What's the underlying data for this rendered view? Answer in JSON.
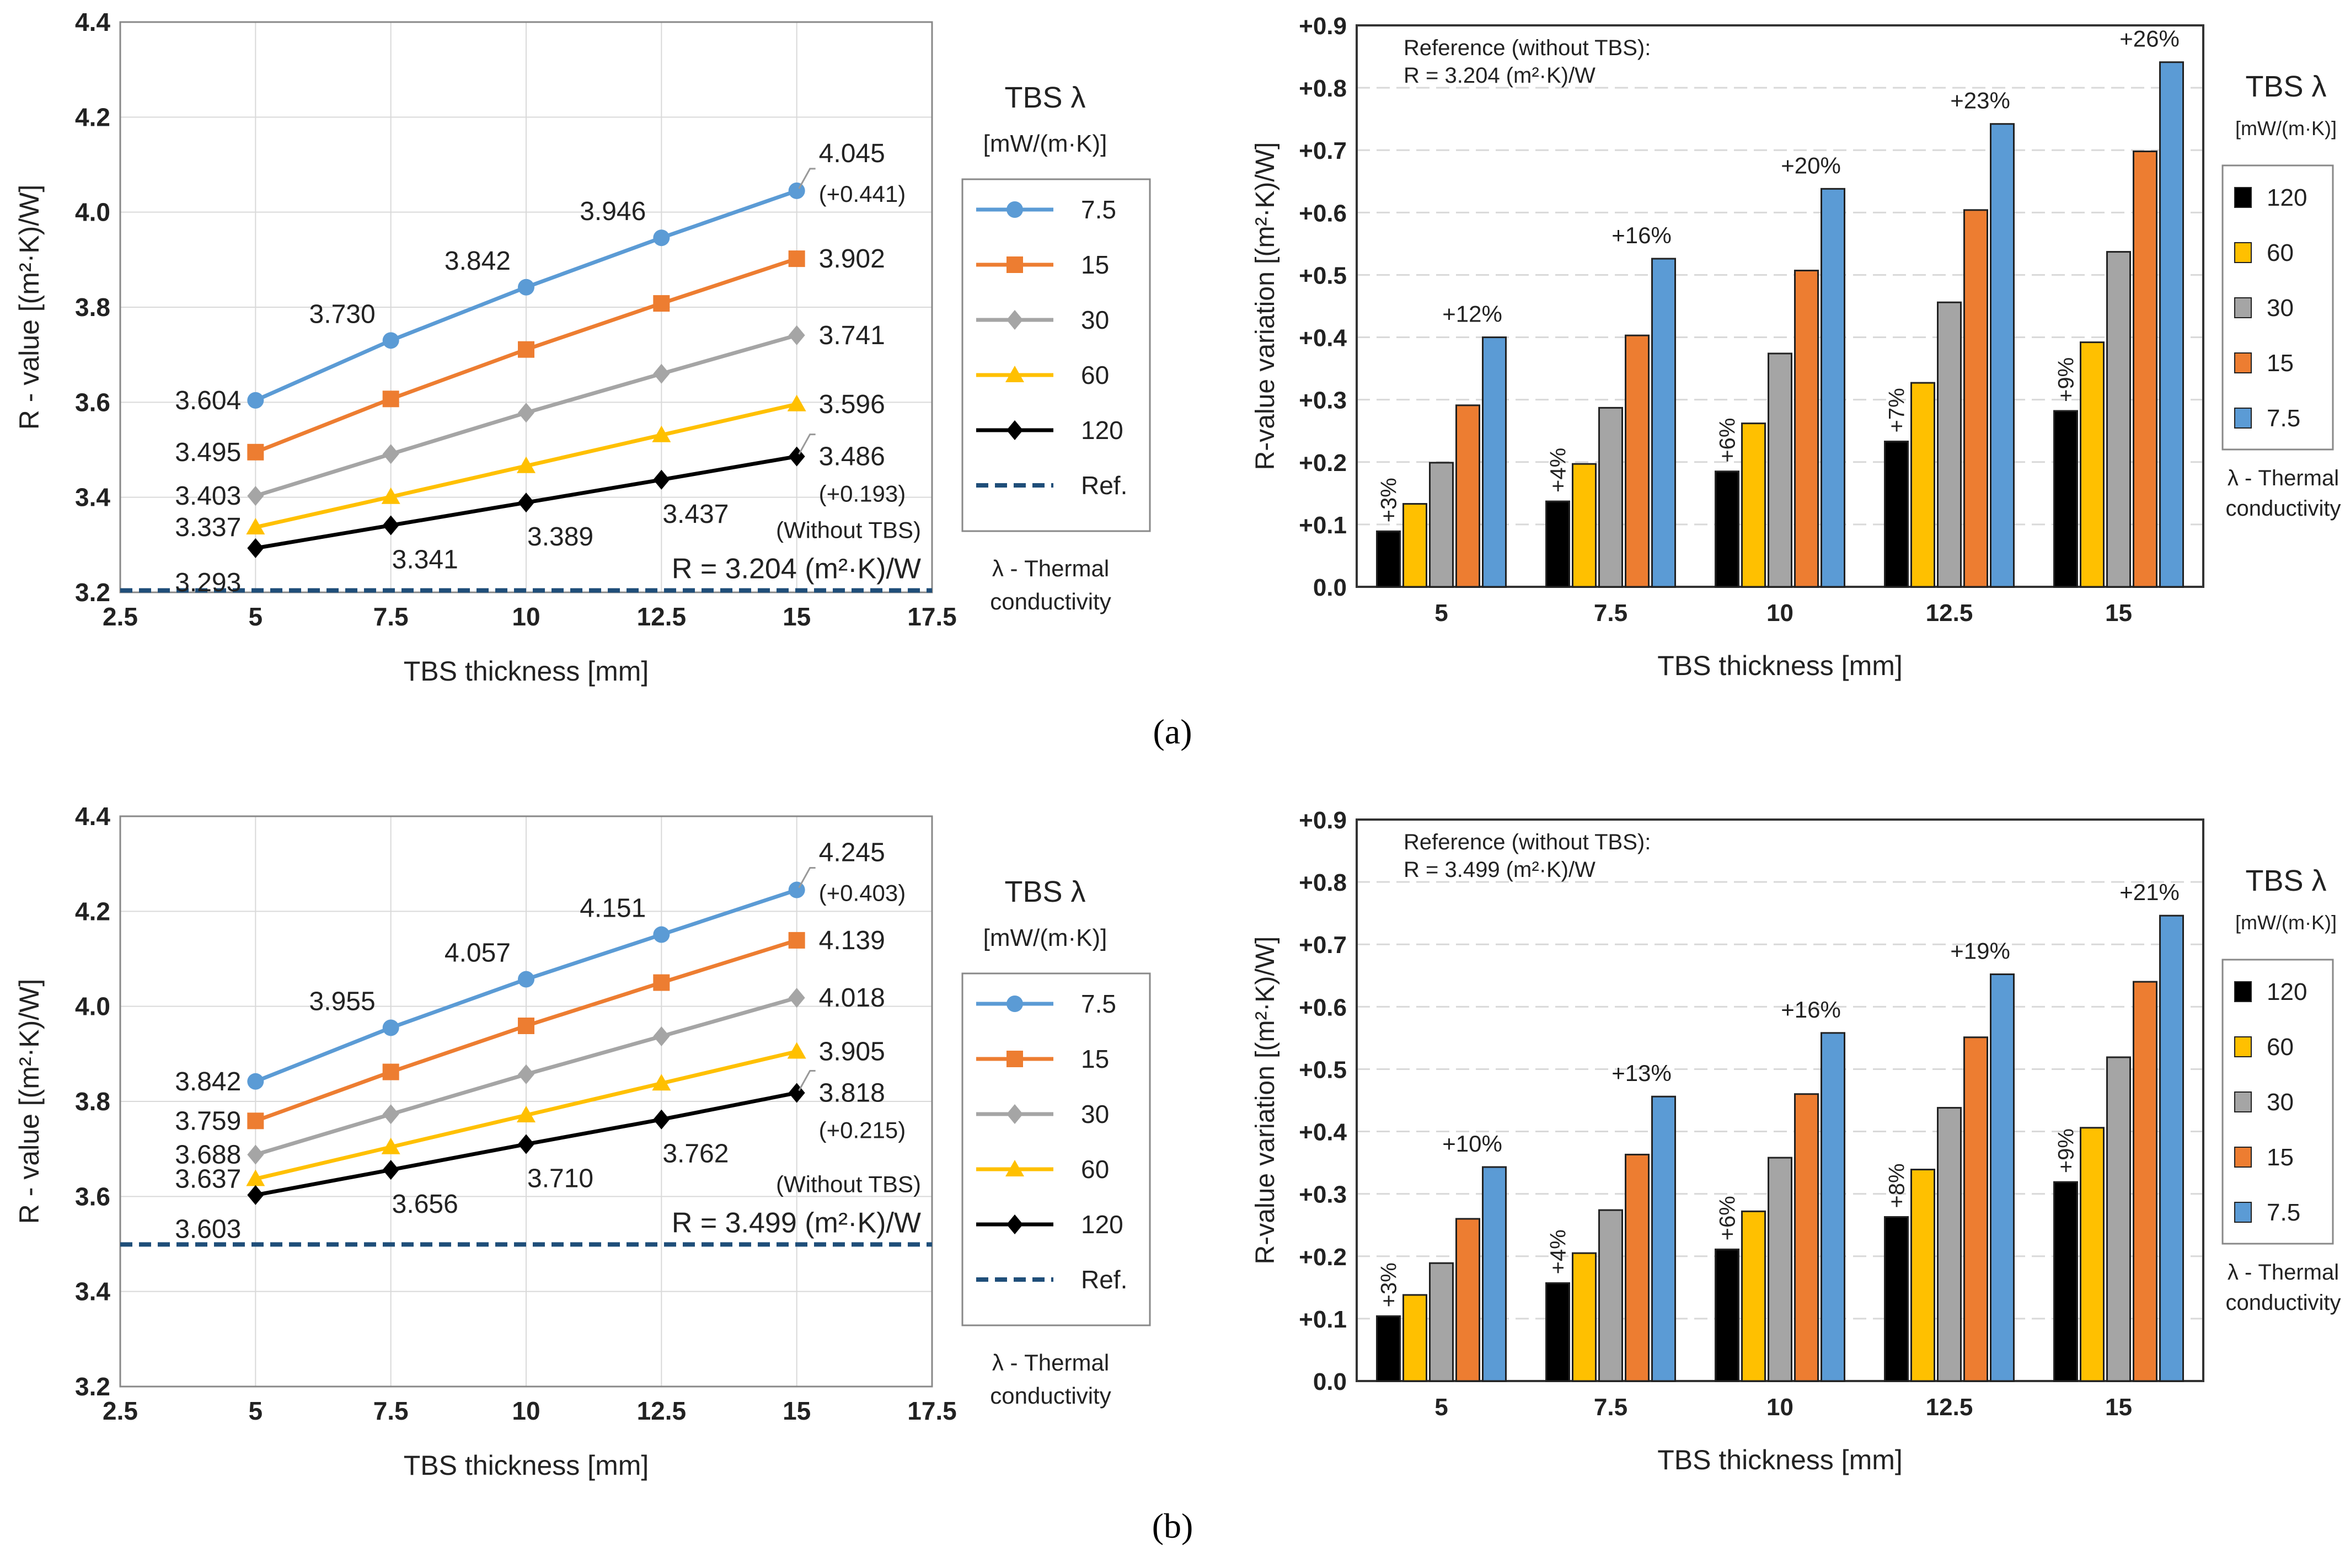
{
  "colors": {
    "s120": "#000000",
    "s60": "#FFC000",
    "s30": "#A5A5A5",
    "s15": "#ED7D31",
    "s7_5": "#5B9BD5",
    "ref": "#1F4E79",
    "grid": "#D9D9D9"
  },
  "panels": [
    {
      "label": "(a)",
      "line": {
        "xlabel": "TBS thickness [mm]",
        "ylabel": "R - value  [(m²·K)/W]",
        "xlim": [
          2.5,
          17.5
        ],
        "xticks": [
          "2.5",
          "5",
          "7.5",
          "10",
          "12.5",
          "15",
          "17.5"
        ],
        "ylim": [
          3.2,
          4.4
        ],
        "yticks": [
          "3.2",
          "3.4",
          "3.6",
          "3.8",
          "4.0",
          "4.2",
          "4.4"
        ],
        "ref_value": 3.204,
        "ref_note": "(Without TBS)",
        "ref_text": "R = 3.204 (m²·K)/W",
        "end_deltas": [
          "(+0.441)",
          "(+0.193)"
        ],
        "legend_title": "TBS λ",
        "legend_unit": "[mW/(m·K)]",
        "legend_items": [
          "7.5",
          "15",
          "30",
          "60",
          "120",
          "Ref."
        ],
        "legend_note": [
          "λ - Thermal",
          "conductivity"
        ]
      },
      "bar": {
        "xlabel": "TBS thickness [mm]",
        "ylabel": "R-value variation [(m²·K)/W]",
        "ylim": [
          0,
          0.9
        ],
        "yticks": [
          "0.0",
          "+0.1",
          "+0.2",
          "+0.3",
          "+0.4",
          "+0.5",
          "+0.6",
          "+0.7",
          "+0.8",
          "+0.9"
        ],
        "reference_line1": "Reference (without TBS):",
        "reference_line2": "R = 3.204 (m²·K)/W",
        "legend_title": "TBS λ",
        "legend_unit": "[mW/(m·K)]",
        "legend_items": [
          "120",
          "60",
          "30",
          "15",
          "7.5"
        ],
        "legend_note": [
          "λ - Thermal",
          "conductivity"
        ]
      }
    },
    {
      "label": "(b)",
      "line": {
        "xlabel": "TBS thickness [mm]",
        "ylabel": "R - value  [(m²·K)/W]",
        "xlim": [
          2.5,
          17.5
        ],
        "xticks": [
          "2.5",
          "5",
          "7.5",
          "10",
          "12.5",
          "15",
          "17.5"
        ],
        "ylim": [
          3.2,
          4.4
        ],
        "yticks": [
          "3.2",
          "3.4",
          "3.6",
          "3.8",
          "4.0",
          "4.2",
          "4.4"
        ],
        "ref_value": 3.499,
        "ref_note": "(Without TBS)",
        "ref_text": "R = 3.499 (m²·K)/W",
        "end_deltas": [
          "(+0.403)",
          "(+0.215)"
        ],
        "legend_title": "TBS λ",
        "legend_unit": "[mW/(m·K)]",
        "legend_items": [
          "7.5",
          "15",
          "30",
          "60",
          "120",
          "Ref."
        ],
        "legend_note": [
          "λ - Thermal",
          "conductivity"
        ]
      },
      "bar": {
        "xlabel": "TBS thickness [mm]",
        "ylabel": "R-value variation [(m²·K)/W]",
        "ylim": [
          0,
          0.9
        ],
        "yticks": [
          "0.0",
          "+0.1",
          "+0.2",
          "+0.3",
          "+0.4",
          "+0.5",
          "+0.6",
          "+0.7",
          "+0.8",
          "+0.9"
        ],
        "reference_line1": "Reference (without TBS):",
        "reference_line2": "R = 3.499 (m²·K)/W",
        "legend_title": "TBS λ",
        "legend_unit": "[mW/(m·K)]",
        "legend_items": [
          "120",
          "60",
          "30",
          "15",
          "7.5"
        ],
        "legend_note": [
          "λ - Thermal",
          "conductivity"
        ]
      }
    }
  ],
  "chart_data": [
    {
      "type": "line",
      "panel": "(a)",
      "x": [
        5,
        7.5,
        10,
        12.5,
        15
      ],
      "series": [
        {
          "name": "7.5",
          "values": [
            3.604,
            3.73,
            3.842,
            3.946,
            4.045
          ],
          "labels": [
            "3.604",
            "3.730",
            "3.842",
            "3.946",
            "4.045"
          ]
        },
        {
          "name": "15",
          "values": [
            3.495,
            3.607,
            3.711,
            3.808,
            3.902
          ],
          "labels": [
            "3.495",
            "",
            "",
            "",
            "3.902"
          ]
        },
        {
          "name": "30",
          "values": [
            3.403,
            3.491,
            3.578,
            3.66,
            3.741
          ],
          "labels": [
            "3.403",
            "",
            "",
            "",
            "3.741"
          ]
        },
        {
          "name": "60",
          "values": [
            3.337,
            3.401,
            3.466,
            3.531,
            3.596
          ],
          "labels": [
            "3.337",
            "",
            "",
            "",
            "3.596"
          ]
        },
        {
          "name": "120",
          "values": [
            3.293,
            3.341,
            3.389,
            3.437,
            3.486
          ],
          "labels": [
            "3.293",
            "3.341",
            "3.389",
            "3.437",
            "3.486"
          ]
        }
      ]
    },
    {
      "type": "bar",
      "panel": "(a)",
      "categories": [
        "5",
        "7.5",
        "10",
        "12.5",
        "15"
      ],
      "series": [
        {
          "name": "120",
          "values": [
            0.089,
            0.137,
            0.185,
            0.233,
            0.282
          ],
          "labels": [
            "+3%",
            "+4%",
            "+6%",
            "+7%",
            "+9%"
          ]
        },
        {
          "name": "60",
          "values": [
            0.133,
            0.197,
            0.262,
            0.327,
            0.392
          ]
        },
        {
          "name": "30",
          "values": [
            0.199,
            0.287,
            0.374,
            0.456,
            0.537
          ]
        },
        {
          "name": "15",
          "values": [
            0.291,
            0.403,
            0.507,
            0.604,
            0.698
          ]
        },
        {
          "name": "7.5",
          "values": [
            0.4,
            0.526,
            0.638,
            0.742,
            0.841
          ],
          "labels": [
            "+12%",
            "+16%",
            "+20%",
            "+23%",
            "+26%"
          ]
        }
      ]
    },
    {
      "type": "line",
      "panel": "(b)",
      "x": [
        5,
        7.5,
        10,
        12.5,
        15
      ],
      "series": [
        {
          "name": "7.5",
          "values": [
            3.842,
            3.955,
            4.057,
            4.151,
            4.245
          ],
          "labels": [
            "3.842",
            "3.955",
            "4.057",
            "4.151",
            "4.245"
          ]
        },
        {
          "name": "15",
          "values": [
            3.759,
            3.862,
            3.959,
            4.05,
            4.139
          ],
          "labels": [
            "3.759",
            "",
            "",
            "",
            "4.139"
          ]
        },
        {
          "name": "30",
          "values": [
            3.688,
            3.773,
            3.857,
            3.937,
            4.018
          ],
          "labels": [
            "3.688",
            "",
            "",
            "",
            "4.018"
          ]
        },
        {
          "name": "60",
          "values": [
            3.637,
            3.704,
            3.771,
            3.838,
            3.905
          ],
          "labels": [
            "3.637",
            "",
            "",
            "",
            "3.905"
          ]
        },
        {
          "name": "120",
          "values": [
            3.603,
            3.656,
            3.71,
            3.762,
            3.818
          ],
          "labels": [
            "3.603",
            "3.656",
            "3.710",
            "3.762",
            "3.818"
          ]
        }
      ]
    },
    {
      "type": "bar",
      "panel": "(b)",
      "categories": [
        "5",
        "7.5",
        "10",
        "12.5",
        "15"
      ],
      "series": [
        {
          "name": "120",
          "values": [
            0.104,
            0.157,
            0.211,
            0.263,
            0.319
          ],
          "labels": [
            "+3%",
            "+4%",
            "+6%",
            "+8%",
            "+9%"
          ]
        },
        {
          "name": "60",
          "values": [
            0.138,
            0.205,
            0.272,
            0.339,
            0.406
          ]
        },
        {
          "name": "30",
          "values": [
            0.189,
            0.274,
            0.358,
            0.438,
            0.519
          ]
        },
        {
          "name": "15",
          "values": [
            0.26,
            0.363,
            0.46,
            0.551,
            0.64
          ]
        },
        {
          "name": "7.5",
          "values": [
            0.343,
            0.456,
            0.558,
            0.652,
            0.746
          ],
          "labels": [
            "+10%",
            "+13%",
            "+16%",
            "+19%",
            "+21%"
          ]
        }
      ]
    }
  ]
}
